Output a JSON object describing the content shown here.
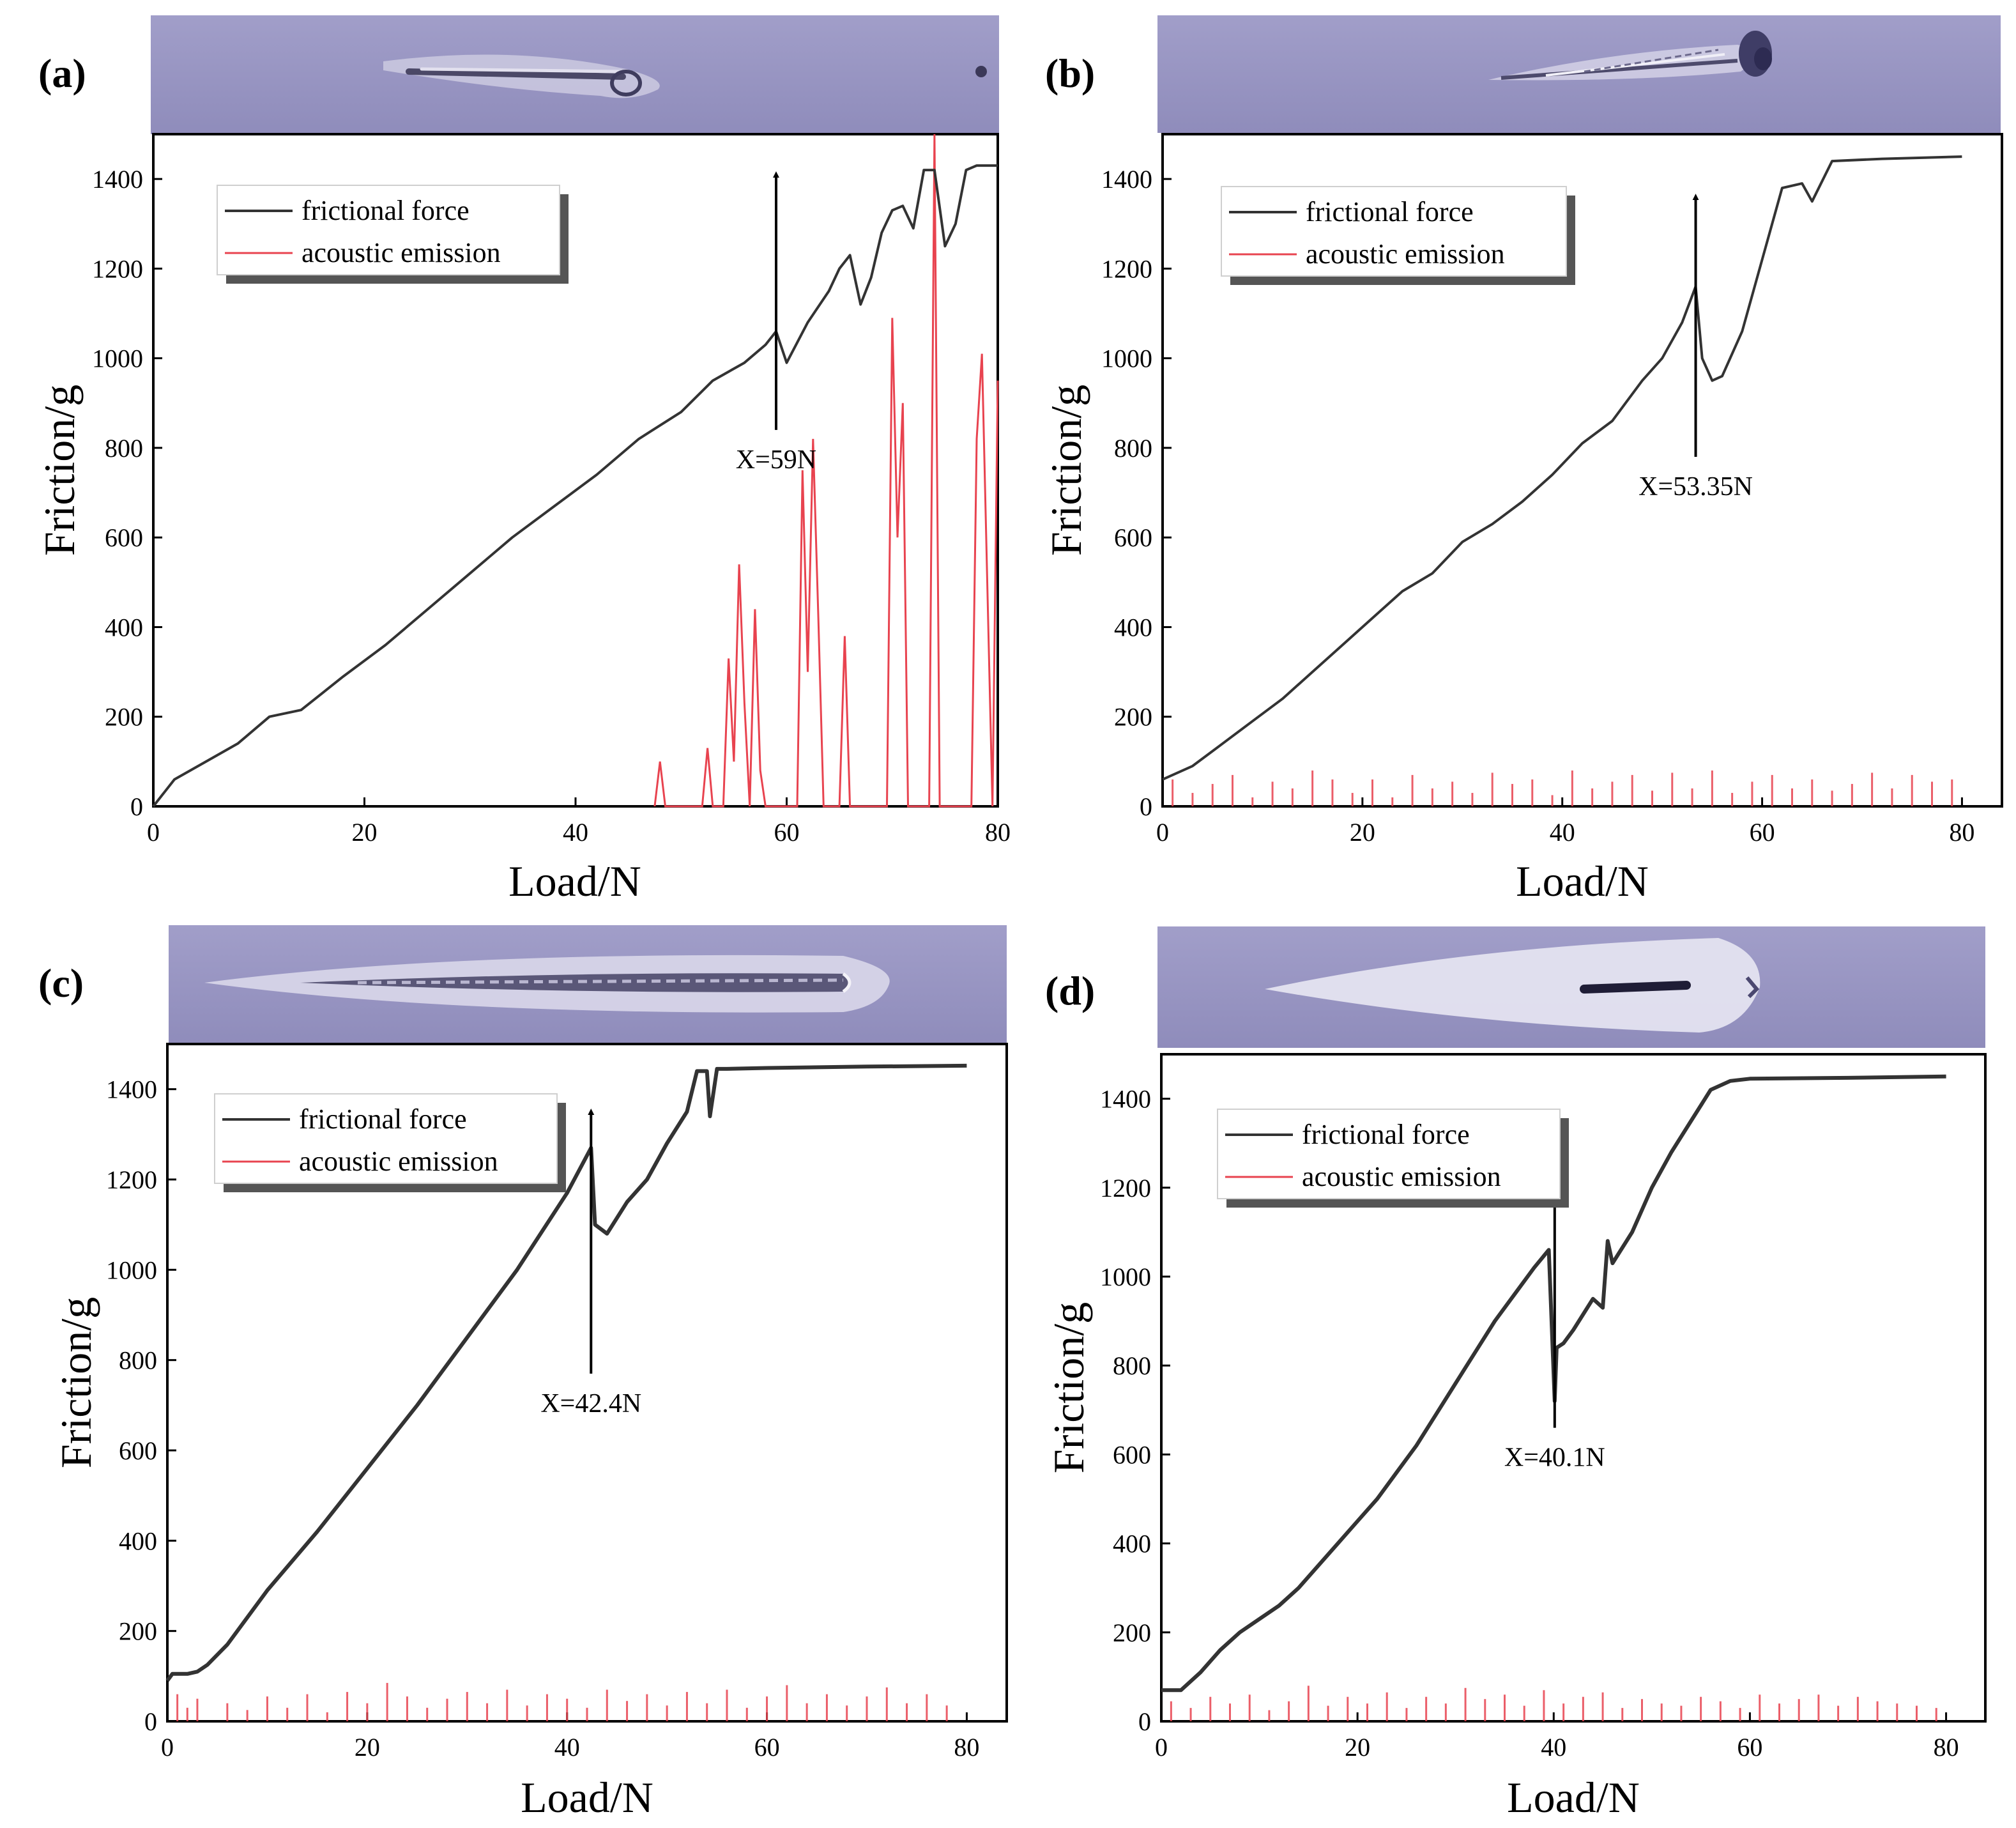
{
  "figure": {
    "panels": [
      {
        "label": "(a)"
      },
      {
        "label": "(b)"
      },
      {
        "label": "(c)"
      },
      {
        "label": "(d)"
      }
    ]
  },
  "chart_data": [
    {
      "panel": "(a)",
      "type": "line",
      "xlabel": "Load/N",
      "ylabel": "Friction/g",
      "xlim": [
        0,
        80
      ],
      "ylim": [
        0,
        1500
      ],
      "xticks": [
        "0",
        "20",
        "40",
        "60",
        "80"
      ],
      "yticks": [
        "0",
        "200",
        "400",
        "600",
        "800",
        "1000",
        "1200",
        "1400"
      ],
      "legend": [
        "frictional force",
        "acoustic emission"
      ],
      "colors": {
        "friction": "#333333",
        "acoustic": "#e8434f"
      },
      "annotation": {
        "text": "X=59N",
        "x": 59,
        "arrow_from_y": 840,
        "arrow_to_y": 1410
      },
      "series": [
        {
          "name": "frictional force",
          "x": [
            0,
            2,
            5,
            8,
            11,
            14,
            18,
            22,
            26,
            30,
            34,
            38,
            42,
            46,
            50,
            53,
            56,
            58,
            59,
            60,
            62,
            64,
            65,
            66,
            67,
            68,
            69,
            70,
            71,
            72,
            73,
            74,
            75,
            76,
            77,
            78,
            80
          ],
          "y": [
            0,
            60,
            100,
            140,
            200,
            215,
            290,
            360,
            440,
            520,
            600,
            670,
            740,
            820,
            880,
            950,
            990,
            1030,
            1060,
            990,
            1080,
            1150,
            1200,
            1230,
            1120,
            1180,
            1280,
            1330,
            1340,
            1290,
            1420,
            1420,
            1250,
            1300,
            1420,
            1430,
            1430
          ]
        },
        {
          "name": "acoustic emission",
          "x": [
            47.5,
            48,
            48.5,
            52,
            52.5,
            53,
            54,
            54.5,
            55,
            55.5,
            56,
            56.5,
            57,
            57.5,
            58,
            61,
            61.5,
            62,
            62.5,
            63,
            63.5,
            64,
            65,
            65.5,
            66,
            69.5,
            70,
            70.5,
            71,
            71.5,
            73.5,
            74,
            74.5,
            77.5,
            78,
            78.5,
            79.5,
            80
          ],
          "y": [
            0,
            100,
            0,
            0,
            130,
            0,
            0,
            330,
            100,
            540,
            230,
            0,
            440,
            80,
            0,
            0,
            750,
            300,
            820,
            420,
            0,
            0,
            0,
            380,
            0,
            0,
            1090,
            600,
            900,
            0,
            0,
            1500,
            0,
            0,
            820,
            1010,
            0,
            950
          ]
        }
      ]
    },
    {
      "panel": "(b)",
      "type": "line",
      "xlabel": "Load/N",
      "ylabel": "Friction/g",
      "xlim": [
        0,
        84
      ],
      "ylim": [
        0,
        1500
      ],
      "xticks": [
        "0",
        "20",
        "40",
        "60",
        "80"
      ],
      "yticks": [
        "0",
        "200",
        "400",
        "600",
        "800",
        "1000",
        "1200",
        "1400"
      ],
      "legend": [
        "frictional force",
        "acoustic emission"
      ],
      "colors": {
        "friction": "#333333",
        "acoustic": "#e8434f"
      },
      "annotation": {
        "text": "X=53.35N",
        "x": 53.35,
        "arrow_from_y": 780,
        "arrow_to_y": 1360
      },
      "series": [
        {
          "name": "frictional force",
          "x": [
            0,
            3,
            6,
            9,
            12,
            15,
            18,
            21,
            24,
            27,
            30,
            33,
            36,
            39,
            42,
            45,
            48,
            50,
            52,
            53.35,
            54,
            55,
            56,
            58,
            60,
            62,
            64,
            65,
            67,
            72,
            80
          ],
          "y": [
            60,
            90,
            140,
            190,
            240,
            300,
            360,
            420,
            480,
            520,
            590,
            630,
            680,
            740,
            810,
            860,
            950,
            1000,
            1080,
            1160,
            1000,
            950,
            960,
            1060,
            1220,
            1380,
            1390,
            1350,
            1440,
            1445,
            1450
          ]
        },
        {
          "name": "acoustic emission",
          "x": [
            1,
            3,
            5,
            7,
            9,
            11,
            13,
            15,
            17,
            19,
            21,
            23,
            25,
            27,
            29,
            31,
            33,
            35,
            37,
            39,
            41,
            43,
            45,
            47,
            49,
            51,
            53,
            55,
            57,
            59,
            61,
            63,
            65,
            67,
            69,
            71,
            73,
            75,
            77,
            79
          ],
          "y": [
            60,
            30,
            50,
            70,
            20,
            55,
            40,
            80,
            60,
            30,
            60,
            20,
            70,
            40,
            55,
            30,
            75,
            50,
            60,
            25,
            80,
            40,
            55,
            70,
            35,
            75,
            40,
            80,
            30,
            55,
            70,
            40,
            60,
            35,
            50,
            75,
            40,
            70,
            55,
            60
          ]
        }
      ]
    },
    {
      "panel": "(c)",
      "type": "line",
      "xlabel": "Load/N",
      "ylabel": "Friction/g",
      "xlim": [
        0,
        84
      ],
      "ylim": [
        0,
        1500
      ],
      "xticks": [
        "0",
        "20",
        "40",
        "60",
        "80"
      ],
      "yticks": [
        "0",
        "200",
        "400",
        "600",
        "800",
        "1000",
        "1200",
        "1400"
      ],
      "legend": [
        "frictional force",
        "acoustic emission"
      ],
      "colors": {
        "friction": "#333333",
        "acoustic": "#e8434f"
      },
      "annotation": {
        "text": "X=42.4N",
        "x": 42.4,
        "arrow_from_y": 770,
        "arrow_to_y": 1350
      },
      "series": [
        {
          "name": "frictional force",
          "x": [
            0,
            0.5,
            2,
            3,
            4,
            6,
            10,
            15,
            20,
            25,
            30,
            35,
            40,
            42.4,
            42.8,
            44,
            46,
            48,
            50,
            52,
            53,
            54,
            54.3,
            55,
            56,
            60,
            70,
            80
          ],
          "y": [
            90,
            105,
            105,
            110,
            125,
            170,
            290,
            420,
            560,
            700,
            850,
            1000,
            1170,
            1270,
            1100,
            1080,
            1150,
            1200,
            1280,
            1350,
            1440,
            1440,
            1340,
            1445,
            1445,
            1447,
            1450,
            1452
          ]
        },
        {
          "name": "acoustic emission",
          "x": [
            1,
            2,
            3,
            6,
            8,
            10,
            12,
            14,
            16,
            18,
            20,
            22,
            24,
            26,
            28,
            30,
            32,
            34,
            36,
            38,
            40,
            42,
            44,
            46,
            48,
            50,
            52,
            54,
            56,
            58,
            60,
            62,
            64,
            66,
            68,
            70,
            72,
            74,
            76,
            78
          ],
          "y": [
            60,
            30,
            50,
            40,
            25,
            55,
            30,
            60,
            20,
            65,
            40,
            85,
            55,
            30,
            50,
            65,
            40,
            70,
            35,
            60,
            50,
            30,
            70,
            45,
            60,
            35,
            65,
            40,
            70,
            30,
            55,
            80,
            40,
            60,
            35,
            55,
            75,
            40,
            60,
            35
          ]
        }
      ]
    },
    {
      "panel": "(d)",
      "type": "line",
      "xlabel": "Load/N",
      "ylabel": "Friction/g",
      "xlim": [
        0,
        84
      ],
      "ylim": [
        0,
        1500
      ],
      "xticks": [
        "0",
        "20",
        "40",
        "60",
        "80"
      ],
      "yticks": [
        "0",
        "200",
        "400",
        "600",
        "800",
        "1000",
        "1200",
        "1400"
      ],
      "legend": [
        "frictional force",
        "acoustic emission"
      ],
      "colors": {
        "friction": "#333333",
        "acoustic": "#e8434f"
      },
      "annotation": {
        "text": "X=40.1N",
        "x": 40.1,
        "arrow_from_y": 660,
        "arrow_to_y": 1230
      },
      "series": [
        {
          "name": "frictional force",
          "x": [
            0,
            1,
            2,
            4,
            6,
            8,
            10,
            12,
            14,
            16,
            18,
            20,
            22,
            24,
            26,
            28,
            30,
            32,
            34,
            36,
            38,
            39.5,
            40.1,
            40.3,
            41,
            42,
            44,
            45,
            45.5,
            46,
            48,
            50,
            52,
            54,
            56,
            58,
            60,
            70,
            80
          ],
          "y": [
            70,
            70,
            70,
            110,
            160,
            200,
            230,
            260,
            300,
            350,
            400,
            450,
            500,
            560,
            620,
            690,
            760,
            830,
            900,
            960,
            1020,
            1060,
            720,
            840,
            850,
            880,
            950,
            930,
            1080,
            1030,
            1100,
            1200,
            1280,
            1350,
            1420,
            1440,
            1445,
            1447,
            1450
          ]
        },
        {
          "name": "acoustic emission",
          "x": [
            1,
            3,
            5,
            7,
            9,
            11,
            13,
            15,
            17,
            19,
            21,
            23,
            25,
            27,
            29,
            31,
            33,
            35,
            37,
            39,
            41,
            43,
            45,
            47,
            49,
            51,
            53,
            55,
            57,
            59,
            61,
            63,
            65,
            67,
            69,
            71,
            73,
            75,
            77,
            79
          ],
          "y": [
            45,
            30,
            55,
            40,
            60,
            25,
            45,
            80,
            35,
            55,
            40,
            65,
            30,
            55,
            40,
            75,
            50,
            60,
            35,
            70,
            40,
            55,
            65,
            30,
            50,
            40,
            35,
            55,
            45,
            30,
            60,
            40,
            50,
            60,
            35,
            55,
            45,
            40,
            35,
            30
          ]
        }
      ]
    }
  ]
}
